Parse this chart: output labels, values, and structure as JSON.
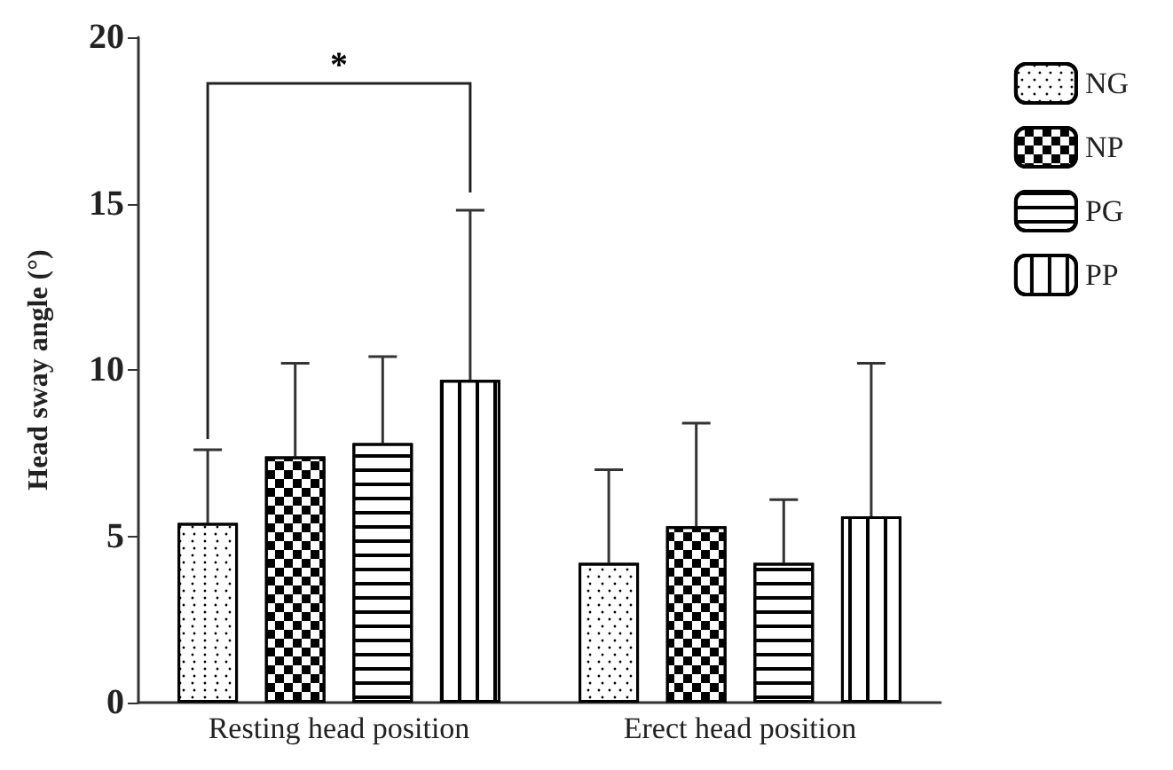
{
  "chart_data": {
    "type": "bar",
    "ylabel": "Head sway angle (°)",
    "categories": [
      "Resting head position",
      "Erect head position"
    ],
    "series": [
      {
        "name": "NG",
        "color": "#000000",
        "values": [
          5.4,
          4.2
        ],
        "errors": [
          [
            5.4,
            7.6
          ],
          [
            4.2,
            7.0
          ]
        ]
      },
      {
        "name": "NP",
        "color": "#000000",
        "values": [
          7.4,
          5.3
        ],
        "errors": [
          [
            7.4,
            10.2
          ],
          [
            5.3,
            8.4
          ]
        ]
      },
      {
        "name": "PG",
        "color": "#000000",
        "values": [
          7.8,
          4.2
        ],
        "errors": [
          [
            7.8,
            10.4
          ],
          [
            4.2,
            6.1
          ]
        ]
      },
      {
        "name": "PP",
        "color": "#000000",
        "values": [
          9.7,
          5.6
        ],
        "errors": [
          [
            9.7,
            14.8
          ],
          [
            5.6,
            10.2
          ]
        ]
      }
    ],
    "ylim": [
      0,
      20
    ],
    "yticks": [
      0,
      5,
      10,
      15,
      20
    ],
    "grid": false,
    "legend": "top right",
    "annotations": [
      "*"
    ]
  }
}
